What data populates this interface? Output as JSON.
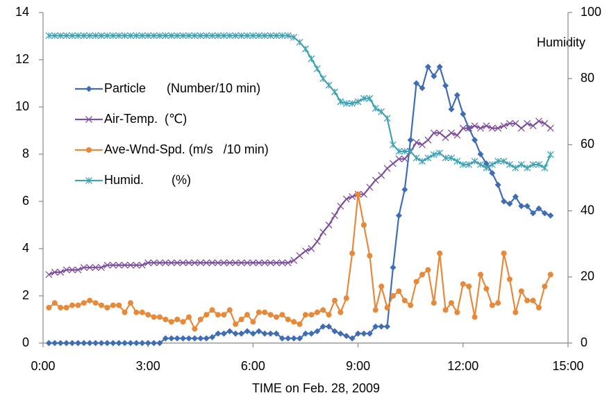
{
  "chart_data": {
    "type": "line",
    "xlabel": "TIME on Feb. 28, 2009",
    "y2label": "Humidity",
    "xlim": [
      0,
      900
    ],
    "xticks": [
      {
        "value": 0,
        "label": "0:00"
      },
      {
        "value": 180,
        "label": "3:00"
      },
      {
        "value": 360,
        "label": "6:00"
      },
      {
        "value": 540,
        "label": "9:00"
      },
      {
        "value": 720,
        "label": "12:00"
      },
      {
        "value": 900,
        "label": "15:00"
      }
    ],
    "ylim": [
      0,
      14
    ],
    "yticks": [
      0,
      2,
      4,
      6,
      8,
      10,
      12,
      14
    ],
    "y2lim": [
      0,
      100
    ],
    "y2ticks": [
      0,
      20,
      40,
      60,
      80,
      100
    ],
    "x": [
      10,
      20,
      30,
      40,
      50,
      60,
      70,
      80,
      90,
      100,
      110,
      120,
      130,
      140,
      150,
      160,
      170,
      180,
      190,
      200,
      210,
      220,
      230,
      240,
      250,
      260,
      270,
      280,
      290,
      300,
      310,
      320,
      330,
      340,
      350,
      360,
      370,
      380,
      390,
      400,
      410,
      420,
      430,
      440,
      450,
      460,
      470,
      480,
      490,
      500,
      510,
      520,
      530,
      540,
      550,
      560,
      570,
      580,
      590,
      600,
      610,
      620,
      630,
      640,
      650,
      660,
      670,
      680,
      690,
      700,
      710,
      720,
      730,
      740,
      750,
      760,
      770,
      780,
      790,
      800,
      810,
      820,
      830,
      840,
      850,
      860,
      870
    ],
    "series": [
      {
        "name": "Particle      (Number/10 min)",
        "color": "#3e6db5",
        "marker": "diamond",
        "values": [
          0,
          0,
          0,
          0,
          0,
          0,
          0,
          0,
          0,
          0,
          0,
          0,
          0,
          0,
          0,
          0,
          0,
          0,
          0,
          0,
          0.2,
          0.2,
          0.2,
          0.2,
          0.2,
          0.2,
          0.2,
          0.2,
          0.25,
          0.4,
          0.4,
          0.5,
          0.4,
          0.4,
          0.5,
          0.4,
          0.5,
          0.4,
          0.4,
          0.4,
          0.2,
          0.2,
          0.2,
          0.2,
          0.4,
          0.4,
          0.5,
          0.7,
          0.7,
          0.5,
          0.4,
          0.3,
          0.2,
          0.4,
          0.4,
          0.4,
          0.7,
          0.7,
          0.7,
          3.2,
          5.4,
          6.5,
          8.6,
          11.0,
          10.8,
          11.7,
          11.3,
          11.7,
          10.9,
          9.9,
          10.5,
          9.7,
          9.1,
          8.6,
          8.0,
          7.6,
          7.2,
          6.7,
          6.0,
          5.9,
          6.2,
          5.8,
          5.8,
          5.5,
          5.7,
          5.5,
          5.4
        ]
      },
      {
        "name": "Air-Temp.  (℃)",
        "color": "#7d4f9e",
        "marker": "x",
        "values": [
          2.9,
          3.0,
          3.0,
          3.1,
          3.1,
          3.1,
          3.2,
          3.2,
          3.2,
          3.2,
          3.3,
          3.3,
          3.3,
          3.3,
          3.3,
          3.3,
          3.3,
          3.4,
          3.4,
          3.4,
          3.4,
          3.4,
          3.4,
          3.4,
          3.4,
          3.4,
          3.4,
          3.4,
          3.4,
          3.4,
          3.4,
          3.4,
          3.4,
          3.4,
          3.4,
          3.4,
          3.4,
          3.4,
          3.4,
          3.4,
          3.4,
          3.4,
          3.5,
          3.7,
          3.9,
          4.0,
          4.3,
          4.7,
          5.0,
          5.4,
          5.8,
          6.1,
          6.2,
          6.3,
          6.3,
          6.6,
          6.9,
          7.1,
          7.4,
          7.6,
          7.8,
          7.8,
          8.1,
          8.5,
          8.4,
          8.6,
          8.9,
          8.9,
          8.7,
          8.9,
          8.8,
          9.1,
          9.1,
          9.2,
          9.1,
          9.2,
          9.1,
          9.1,
          9.2,
          9.3,
          9.3,
          9.1,
          9.3,
          9.2,
          9.4,
          9.3,
          9.1
        ]
      },
      {
        "name": "Ave-Wnd-Spd. (m/s   /10 min)",
        "color": "#e8893a",
        "marker": "circle",
        "values": [
          1.5,
          1.7,
          1.5,
          1.5,
          1.6,
          1.6,
          1.7,
          1.8,
          1.7,
          1.6,
          1.5,
          1.6,
          1.6,
          1.3,
          1.7,
          1.3,
          1.3,
          1.2,
          1.1,
          1.1,
          1.0,
          0.9,
          1.0,
          0.9,
          1.1,
          0.6,
          1.0,
          1.2,
          1.4,
          1.2,
          1.2,
          1.4,
          0.8,
          1.0,
          1.2,
          0.9,
          1.3,
          1.3,
          1.2,
          1.1,
          1.2,
          1.0,
          0.9,
          0.8,
          1.2,
          1.2,
          1.3,
          1.4,
          1.2,
          1.8,
          1.3,
          1.9,
          3.8,
          6.3,
          5.0,
          3.7,
          1.4,
          2.4,
          1.5,
          2.0,
          2.2,
          1.8,
          1.6,
          2.6,
          2.9,
          3.1,
          1.7,
          3.8,
          1.4,
          1.7,
          1.3,
          2.5,
          2.4,
          1.1,
          2.9,
          2.3,
          1.6,
          1.7,
          3.8,
          2.7,
          1.3,
          2.2,
          1.8,
          1.8,
          1.5,
          2.4,
          2.9
        ]
      },
      {
        "name": "Humid.        (%)",
        "color": "#3fa2b5",
        "marker": "asterisk",
        "axis": "y2",
        "values": [
          93,
          93,
          93,
          93,
          93,
          93,
          93,
          93,
          93,
          93,
          93,
          93,
          93,
          93,
          93,
          93,
          93,
          93,
          93,
          93,
          93,
          93,
          93,
          93,
          93,
          93,
          93,
          93,
          93,
          93,
          93,
          93,
          93,
          93,
          93,
          93,
          93,
          93,
          93,
          93,
          93,
          93,
          92.5,
          91,
          89,
          86,
          83,
          80,
          78,
          76,
          73,
          72.5,
          72.5,
          73,
          74,
          74,
          71,
          70,
          68,
          60,
          58,
          58,
          58,
          56,
          55,
          56,
          57,
          57.5,
          56,
          56,
          55,
          54,
          54,
          55,
          54,
          53,
          54,
          55,
          55,
          54,
          53,
          54,
          53,
          54,
          54,
          53,
          57
        ]
      }
    ]
  }
}
